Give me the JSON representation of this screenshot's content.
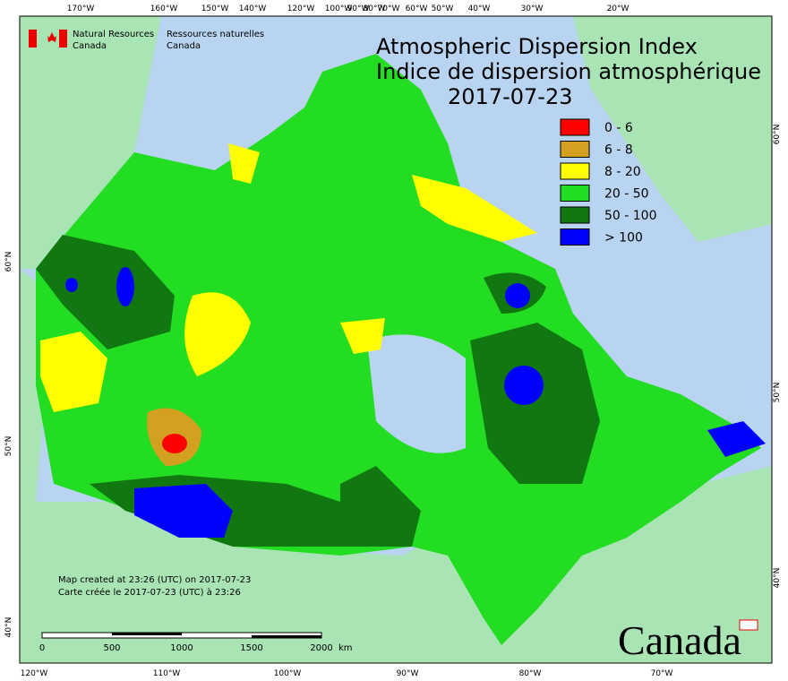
{
  "header": {
    "agency_en": [
      "Natural Resources",
      "Canada"
    ],
    "agency_fr": [
      "Ressources naturelles",
      "Canada"
    ],
    "title_en": "Atmospheric Dispersion Index",
    "title_fr": "Indice de dispersion atmosphérique",
    "date": "2017-07-23"
  },
  "legend": [
    {
      "label": "0 - 6",
      "color": "#ff0000"
    },
    {
      "label": "6 - 8",
      "color": "#d4a020"
    },
    {
      "label": "8 - 20",
      "color": "#ffff00"
    },
    {
      "label": "20 - 50",
      "color": "#22dd22"
    },
    {
      "label": "50 - 100",
      "color": "#117711"
    },
    {
      "label": "> 100",
      "color": "#0000ff"
    }
  ],
  "graticule": {
    "top": [
      "170°W",
      "160°W",
      "150°W",
      "140°W",
      "120°W",
      "100°W",
      "90°W",
      "80°W",
      "70°W",
      "60°W",
      "50°W",
      "40°W",
      "30°W",
      "20°W"
    ],
    "bottom": [
      "120°W",
      "110°W",
      "100°W",
      "90°W",
      "80°W",
      "70°W"
    ],
    "left": [
      "60°N",
      "50°N",
      "40°N"
    ],
    "right": [
      "60°N",
      "50°N",
      "40°N"
    ]
  },
  "footer": {
    "created_en": "Map created at 23:26 (UTC) on 2017-07-23",
    "created_fr": "Carte créée le 2017-07-23 (UTC) à 23:26",
    "scale": [
      "0",
      "500",
      "1000",
      "1500",
      "2000"
    ],
    "scale_unit": "km",
    "wordmark": "Canada"
  }
}
